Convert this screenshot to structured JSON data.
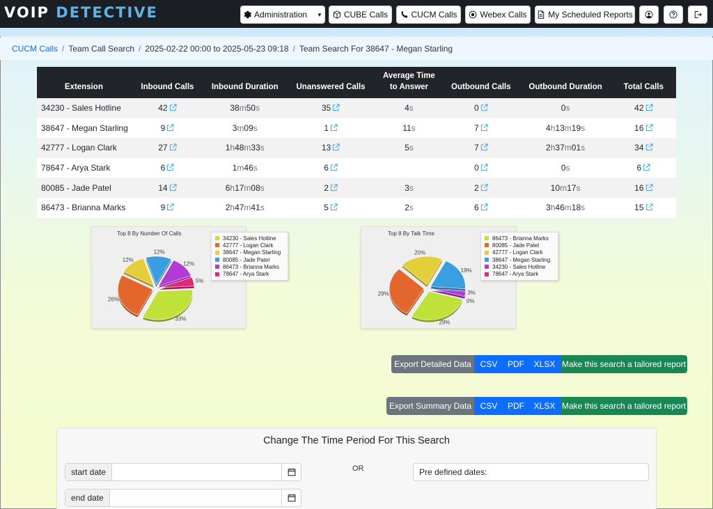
{
  "app": {
    "logo_part1": "VOIP",
    "logo_part2": "DETECTIVE"
  },
  "nav": {
    "administration": "Administration",
    "cube_calls": "CUBE Calls",
    "cucm_calls": "CUCM Calls",
    "webex_calls": "Webex Calls",
    "scheduled_reports": "My Scheduled Reports"
  },
  "breadcrumb": {
    "item1": "CUCM Calls",
    "item2": "Team Call Search",
    "item3": "2025-02-22 00:00 to 2025-05-23 09:18",
    "item4": "Team Search For 38647 - Megan Starling"
  },
  "table": {
    "headers": [
      "Extension",
      "Inbound Calls",
      "Inbound Duration",
      "Unanswered Calls",
      "Average Time",
      "to Answer",
      "Outbound Calls",
      "Outbound Duration",
      "Total Calls"
    ],
    "rows": [
      {
        "ext": "34230 - Sales Hotline",
        "inb": "42",
        "inb_dur": [
          [
            "38",
            "m"
          ],
          [
            "50",
            "s"
          ]
        ],
        "unans": "35",
        "avg": [
          [
            "4",
            "s"
          ]
        ],
        "outb": "0",
        "out_dur": [
          [
            "0",
            "s"
          ]
        ],
        "total": "42"
      },
      {
        "ext": "38647 - Megan Starling",
        "inb": "9",
        "inb_dur": [
          [
            "3",
            "m"
          ],
          [
            "09",
            "s"
          ]
        ],
        "unans": "1",
        "avg": [
          [
            "11",
            "s"
          ]
        ],
        "outb": "7",
        "out_dur": [
          [
            "4",
            "h"
          ],
          [
            "13",
            "m"
          ],
          [
            "19",
            "s"
          ]
        ],
        "total": "16"
      },
      {
        "ext": "42777 - Logan Clark",
        "inb": "27",
        "inb_dur": [
          [
            "1",
            "h"
          ],
          [
            "48",
            "m"
          ],
          [
            "33",
            "s"
          ]
        ],
        "unans": "13",
        "avg": [
          [
            "5",
            "s"
          ]
        ],
        "outb": "7",
        "out_dur": [
          [
            "2",
            "h"
          ],
          [
            "37",
            "m"
          ],
          [
            "01",
            "s"
          ]
        ],
        "total": "34"
      },
      {
        "ext": "78647 - Arya Stark",
        "inb": "6",
        "inb_dur": [
          [
            "1",
            "m"
          ],
          [
            "46",
            "s"
          ]
        ],
        "unans": "6",
        "avg": [],
        "outb": "0",
        "out_dur": [
          [
            "0",
            "s"
          ]
        ],
        "total": "6"
      },
      {
        "ext": "80085 - Jade Patel",
        "inb": "14",
        "inb_dur": [
          [
            "6",
            "h"
          ],
          [
            "17",
            "m"
          ],
          [
            "08",
            "s"
          ]
        ],
        "unans": "2",
        "avg": [
          [
            "3",
            "s"
          ]
        ],
        "outb": "2",
        "out_dur": [
          [
            "10",
            "m"
          ],
          [
            "17",
            "s"
          ]
        ],
        "total": "16"
      },
      {
        "ext": "86473 - Brianna Marks",
        "inb": "9",
        "inb_dur": [
          [
            "2",
            "h"
          ],
          [
            "47",
            "m"
          ],
          [
            "41",
            "s"
          ]
        ],
        "unans": "5",
        "avg": [
          [
            "2",
            "s"
          ]
        ],
        "outb": "6",
        "out_dur": [
          [
            "3",
            "h"
          ],
          [
            "46",
            "m"
          ],
          [
            "18",
            "s"
          ]
        ],
        "total": "15"
      }
    ]
  },
  "chart_data": [
    {
      "type": "pie",
      "title": "Top 8 By Number Of Calls",
      "labels": [
        "34230 - Sales Hotline",
        "42777 - Logan Clark",
        "38647 - Megan Starling",
        "80085 - Jade Patel",
        "86473 - Brianna Marks",
        "78647 - Arya Stark"
      ],
      "values": [
        33,
        26,
        12,
        12,
        12,
        5
      ],
      "value_labels": [
        "33%",
        "26%",
        "12%",
        "12%",
        "12%",
        "5%"
      ],
      "colors": [
        "#bfe13a",
        "#e3662d",
        "#e4cf3a",
        "#3a9fe0",
        "#b23ad6",
        "#e3287c"
      ],
      "legend": "top-right"
    },
    {
      "type": "pie",
      "title": "Top 8 By Talk Time",
      "labels": [
        "86473 - Brianna Marks",
        "80085 - Jade Patel",
        "42777 - Logan Clark",
        "38647 - Megan Starling",
        "34230 - Sales Hotline",
        "78647 - Arya Stark"
      ],
      "values": [
        29,
        29,
        20,
        19,
        3,
        0
      ],
      "value_labels": [
        "29%",
        "29%",
        "20%",
        "19%",
        "3%",
        "0%"
      ],
      "colors": [
        "#bfe13a",
        "#e3662d",
        "#e4cf3a",
        "#3a9fe0",
        "#b23ad6",
        "#e3287c"
      ],
      "legend": "top-right"
    }
  ],
  "export": {
    "detailed_label": "Export Detailed Data",
    "summary_label": "Export Summary Data",
    "csv": "CSV",
    "pdf": "PDF",
    "xlsx": "XLSX",
    "tailored": "Make this search a tailored report"
  },
  "time_panel": {
    "title": "Change The Time Period For This Search",
    "start_label": "start date",
    "end_label": "end date",
    "or": "OR",
    "predefined": "Pre defined dates:"
  }
}
